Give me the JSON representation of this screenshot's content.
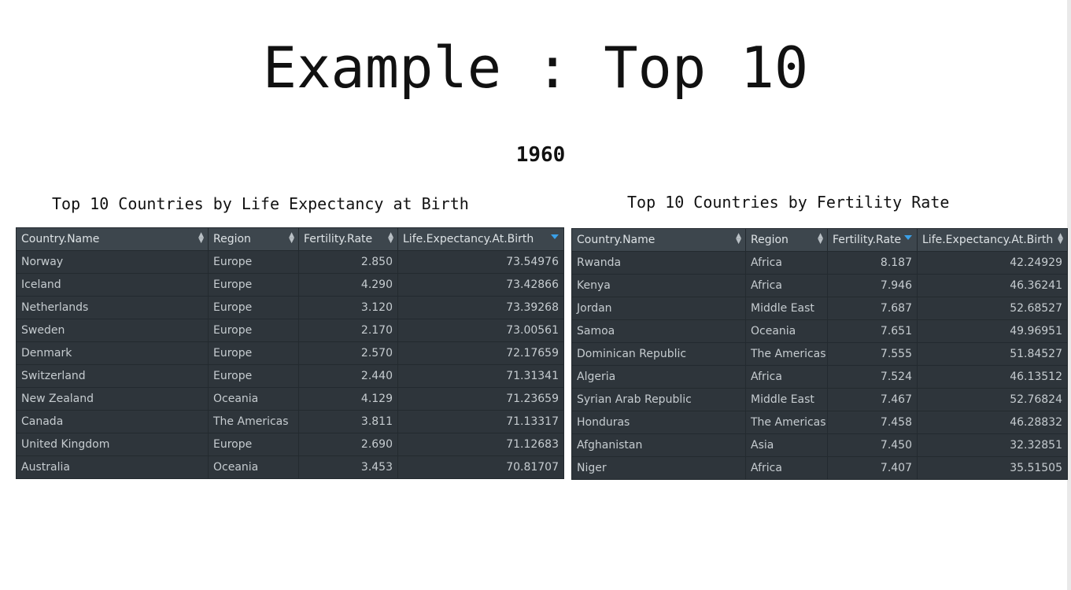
{
  "slide": {
    "title": "Example : Top 10",
    "year": "1960"
  },
  "left_table": {
    "title": "Top 10 Countries by Life Expectancy at Birth",
    "columns": [
      "Country.Name",
      "Region",
      "Fertility.Rate",
      "Life.Expectancy.At.Birth"
    ],
    "sorted_column": "Life.Expectancy.At.Birth",
    "rows": [
      [
        "Norway",
        "Europe",
        "2.850",
        "73.54976"
      ],
      [
        "Iceland",
        "Europe",
        "4.290",
        "73.42866"
      ],
      [
        "Netherlands",
        "Europe",
        "3.120",
        "73.39268"
      ],
      [
        "Sweden",
        "Europe",
        "2.170",
        "73.00561"
      ],
      [
        "Denmark",
        "Europe",
        "2.570",
        "72.17659"
      ],
      [
        "Switzerland",
        "Europe",
        "2.440",
        "71.31341"
      ],
      [
        "New Zealand",
        "Oceania",
        "4.129",
        "71.23659"
      ],
      [
        "Canada",
        "The Americas",
        "3.811",
        "71.13317"
      ],
      [
        "United Kingdom",
        "Europe",
        "2.690",
        "71.12683"
      ],
      [
        "Australia",
        "Oceania",
        "3.453",
        "70.81707"
      ]
    ]
  },
  "right_table": {
    "title": "Top 10 Countries by Fertility Rate",
    "columns": [
      "Country.Name",
      "Region",
      "Fertility.Rate",
      "Life.Expectancy.At.Birth"
    ],
    "sorted_column": "Fertility.Rate",
    "rows": [
      [
        "Rwanda",
        "Africa",
        "8.187",
        "42.24929"
      ],
      [
        "Kenya",
        "Africa",
        "7.946",
        "46.36241"
      ],
      [
        "Jordan",
        "Middle East",
        "7.687",
        "52.68527"
      ],
      [
        "Samoa",
        "Oceania",
        "7.651",
        "49.96951"
      ],
      [
        "Dominican Republic",
        "The Americas",
        "7.555",
        "51.84527"
      ],
      [
        "Algeria",
        "Africa",
        "7.524",
        "46.13512"
      ],
      [
        "Syrian Arab Republic",
        "Middle East",
        "7.467",
        "52.76824"
      ],
      [
        "Honduras",
        "The Americas",
        "7.458",
        "46.28832"
      ],
      [
        "Afghanistan",
        "Asia",
        "7.450",
        "32.32851"
      ],
      [
        "Niger",
        "Africa",
        "7.407",
        "35.51505"
      ]
    ]
  },
  "colors": {
    "table_bg": "#2e353b",
    "header_bg": "#3d464d",
    "sort_active": "#3aa0e8"
  }
}
